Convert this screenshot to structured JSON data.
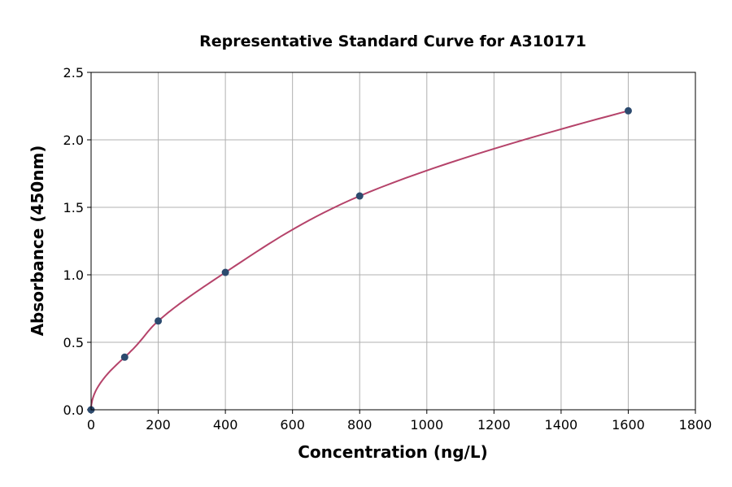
{
  "chart_data": {
    "type": "scatter",
    "title": "Representative Standard Curve for A310171",
    "xlabel": "Concentration (ng/L)",
    "ylabel": "Absorbance (450nm)",
    "xlim": [
      0,
      1800
    ],
    "ylim": [
      0,
      2.5
    ],
    "xticks": [
      "0",
      "200",
      "400",
      "600",
      "800",
      "1000",
      "1200",
      "1400",
      "1600",
      "1800"
    ],
    "yticks": [
      "0.0",
      "0.5",
      "1.0",
      "1.5",
      "2.0",
      "2.5"
    ],
    "grid": true,
    "points": {
      "x": [
        0,
        100,
        200,
        400,
        800,
        1600
      ],
      "y": [
        0.0,
        0.39,
        0.658,
        1.018,
        1.584,
        2.215
      ]
    },
    "fit_curve": {
      "x_range": [
        0,
        1600
      ]
    },
    "colors": {
      "points": "#2c4a6e",
      "curve": "#b5436a",
      "grid": "#b0b0b0"
    }
  }
}
